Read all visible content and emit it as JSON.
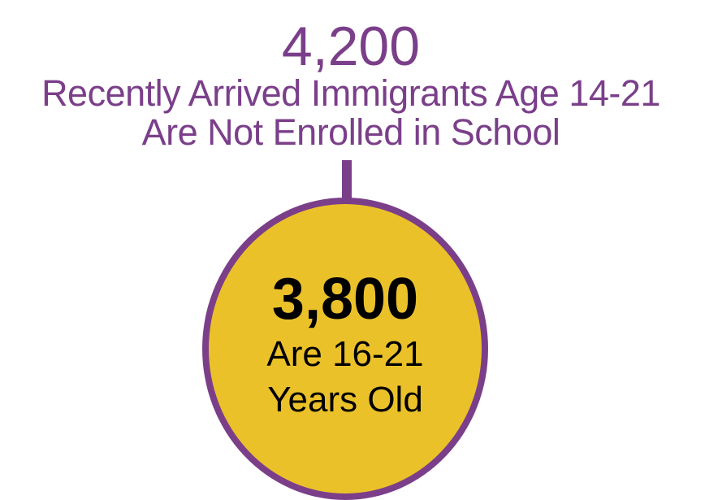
{
  "headline": {
    "number": "4,200",
    "line1": "Recently Arrived Immigrants Age 14-21",
    "line2": "Are Not Enrolled in School"
  },
  "circle": {
    "number": "3,800",
    "line1": "Are 16-21",
    "line2": "Years Old"
  },
  "colors": {
    "purple": "#7b3f8a",
    "yellow": "#ebc12a"
  }
}
